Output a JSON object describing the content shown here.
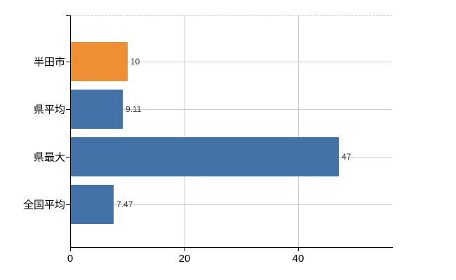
{
  "chart_data": {
    "type": "bar",
    "orientation": "horizontal",
    "title": "",
    "xlabel": "",
    "ylabel": "",
    "categories": [
      "半田市",
      "県平均",
      "県最大",
      "全国平均"
    ],
    "values": [
      10,
      9.11,
      47,
      7.47
    ],
    "value_labels": [
      "10",
      "9.11",
      "47",
      "7.47"
    ],
    "bar_colors": [
      "#ee8f33",
      "#4372a8",
      "#4372a8",
      "#4372a8"
    ],
    "xlim": [
      0,
      56.5
    ],
    "xticks": [
      0,
      20,
      40
    ],
    "xtick_labels": [
      "0",
      "20",
      "40"
    ],
    "grid": true,
    "legend": "none",
    "axis_color": "#000000",
    "grid_color": "#cccccc",
    "background_color": "#ffffff"
  }
}
